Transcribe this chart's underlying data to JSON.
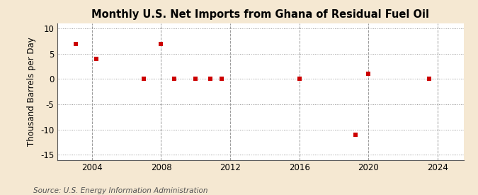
{
  "title": "Monthly U.S. Net Imports from Ghana of Residual Fuel Oil",
  "ylabel": "Thousand Barrels per Day",
  "source": "Source: U.S. Energy Information Administration",
  "background_color": "#f5e8d2",
  "plot_background": "#ffffff",
  "data_points": [
    [
      2003.08,
      7.0
    ],
    [
      2004.25,
      4.0
    ],
    [
      2007.0,
      0.0
    ],
    [
      2008.0,
      7.0
    ],
    [
      2008.75,
      0.0
    ],
    [
      2010.0,
      0.0
    ],
    [
      2010.83,
      0.0
    ],
    [
      2011.5,
      0.0
    ],
    [
      2016.0,
      0.0
    ],
    [
      2019.25,
      -11.0
    ],
    [
      2020.0,
      1.0
    ],
    [
      2023.5,
      0.0
    ]
  ],
  "marker_color": "#cc0000",
  "marker_size": 4,
  "xlim": [
    2002.0,
    2025.5
  ],
  "ylim": [
    -16,
    11
  ],
  "xticks": [
    2004,
    2008,
    2012,
    2016,
    2020,
    2024
  ],
  "yticks": [
    -15,
    -10,
    -5,
    0,
    5,
    10
  ],
  "grid_color": "#999999",
  "grid_style": ":",
  "vline_color": "#999999",
  "vline_style": "--",
  "vlines": [
    2004,
    2008,
    2012,
    2016,
    2020,
    2024
  ],
  "title_fontsize": 10.5,
  "label_fontsize": 8.5,
  "tick_fontsize": 8.5,
  "source_fontsize": 7.5
}
